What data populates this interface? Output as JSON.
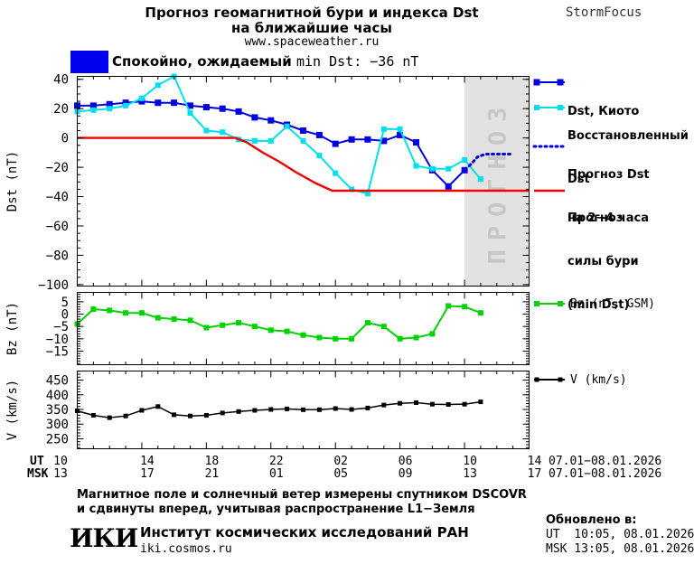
{
  "header": {
    "title_line1": "Прогноз геомагнитной бури и индекса Dst",
    "title_line2": "на ближайшие часы",
    "site": "www.spaceweather.ru",
    "brand": "StormFocus"
  },
  "status": {
    "level_label": "Спокойно, ожидаемый ",
    "value_label": "min Dst: −36 nT",
    "indicator_color": "#0000ee"
  },
  "legend_main": [
    {
      "lines": [
        "Dst, Киото"
      ]
    },
    {
      "lines": [
        "Восстановленный",
        "Dst"
      ]
    },
    {
      "lines": [
        "Прогноз Dst",
        "на 2−4 часа"
      ]
    },
    {
      "lines": [
        "Прогноз",
        "силы бури",
        "(min Dst)"
      ]
    }
  ],
  "legend_bz": "Bz (nT, GSM)",
  "legend_v": "V (km/s)",
  "axis": {
    "ut_label": "UT",
    "msk_label": "MSK",
    "ut_ticks": [
      "10",
      "14",
      "18",
      "22",
      "02",
      "06",
      "10",
      "14"
    ],
    "msk_ticks": [
      "13",
      "17",
      "21",
      "01",
      "05",
      "09",
      "13",
      "17"
    ],
    "ut_date": "07.01−08.01.2026",
    "msk_date": "07.01−08.01.2026"
  },
  "footer": {
    "note_line1": "Магнитное поле и солнечный ветер измерены спутником DSCOVR",
    "note_line2": "и сдвинуты вперед, учитывая распространение L1−Земля",
    "logo_text": "ИКИ",
    "institute": "Институт космических исследований РАН",
    "site": "iki.cosmos.ru",
    "updated_label": "Обновлено в:",
    "updated_ut": "UT  10:05, 08.01.2026",
    "updated_msk": "MSK 13:05, 08.01.2026"
  },
  "chart_data": [
    {
      "type": "line",
      "name": "dst-panel",
      "ylabel": "Dst (nT)",
      "ylim": [
        -101,
        42
      ],
      "yticks": [
        40,
        20,
        0,
        -20,
        -40,
        -60,
        -80,
        -100
      ],
      "yminor": 5,
      "x_hours": [
        0,
        28
      ],
      "xmajor_every": 4,
      "forecast_band": {
        "start_hour": 24,
        "end_hour": 28,
        "label": "ПРОГНОЗ",
        "fill": "#e2e2e2",
        "text_color": "#c7c7c7"
      },
      "series": [
        {
          "name": "Dst, Киото",
          "color": "#0000e0",
          "marker": true,
          "marker_size": 7,
          "width": 2,
          "x": [
            0,
            1,
            2,
            3,
            4,
            5,
            6,
            7,
            8,
            9,
            10,
            11,
            12,
            13,
            14,
            15,
            16,
            17,
            18,
            19,
            20,
            21,
            22,
            23,
            24
          ],
          "values": [
            22,
            22,
            23,
            24,
            25,
            24,
            24,
            22,
            21,
            20,
            18,
            14,
            12,
            9,
            5,
            2,
            -4,
            -1,
            -1,
            -2,
            2,
            -3,
            -22,
            -33,
            -22
          ]
        },
        {
          "name": "Восстановленный Dst",
          "color": "#00dfee",
          "marker": true,
          "marker_size": 6,
          "width": 2,
          "x": [
            0,
            1,
            2,
            3,
            4,
            5,
            6,
            7,
            8,
            9,
            10,
            11,
            12,
            13,
            14,
            15,
            16,
            17,
            18,
            19,
            20,
            21,
            22,
            23,
            24,
            25
          ],
          "values": [
            18,
            19,
            20,
            22,
            27,
            36,
            42,
            17,
            5,
            4,
            -1,
            -2,
            -2,
            8,
            -2,
            -12,
            -24,
            -35,
            -38,
            6,
            6,
            -19,
            -21,
            -21,
            -15,
            -28
          ]
        },
        {
          "name": "Прогноз Dst на 2−4 часа",
          "color": "#0000e0",
          "style": "dotted",
          "width": 3,
          "x": [
            24.3,
            24.8,
            25.3,
            27.0
          ],
          "values": [
            -19,
            -13,
            -11,
            -11
          ]
        },
        {
          "name": "Прогноз силы бури (min Dst)",
          "color": "#ee0000",
          "width": 2.4,
          "x": [
            0,
            9.8,
            10.5,
            11.5,
            12.5,
            13.5,
            14.8,
            15.8,
            28
          ],
          "values": [
            0,
            0,
            -3,
            -10,
            -16,
            -23,
            -31,
            -36,
            -36
          ]
        }
      ]
    },
    {
      "type": "line",
      "name": "bz-panel",
      "ylabel": "Bz (nT)",
      "ylim": [
        -20.5,
        8.8
      ],
      "yticks": [
        5,
        0,
        -5,
        -10,
        -15
      ],
      "yminor": 1,
      "x_hours": [
        0,
        28
      ],
      "xmajor_every": 4,
      "series": [
        {
          "name": "Bz (nT, GSM)",
          "color": "#00d300",
          "marker": true,
          "marker_size": 6,
          "width": 2,
          "x": [
            0,
            1,
            2,
            3,
            4,
            5,
            6,
            7,
            8,
            9,
            10,
            11,
            12,
            13,
            14,
            15,
            16,
            17,
            18,
            19,
            20,
            21,
            22,
            23,
            24,
            25
          ],
          "values": [
            -4,
            2,
            1.5,
            0.5,
            0.5,
            -1.5,
            -2,
            -2.5,
            -5.5,
            -4.5,
            -3.5,
            -5,
            -6.5,
            -7,
            -8.5,
            -9.5,
            -10,
            -10,
            -3.5,
            -5,
            -10,
            -9.5,
            -8,
            3.3,
            3,
            0.5
          ]
        }
      ]
    },
    {
      "type": "line",
      "name": "v-panel",
      "ylabel": "V (km/s)",
      "ylim": [
        216,
        481
      ],
      "yticks": [
        450,
        400,
        350,
        300,
        250
      ],
      "yminor": 10,
      "x_hours": [
        0,
        28
      ],
      "xmajor_every": 4,
      "series": [
        {
          "name": "V (km/s)",
          "color": "#000000",
          "marker": true,
          "marker_size": 5,
          "width": 1.5,
          "x": [
            0,
            1,
            2,
            3,
            4,
            5,
            6,
            7,
            8,
            9,
            10,
            11,
            12,
            13,
            14,
            15,
            16,
            17,
            18,
            19,
            20,
            21,
            22,
            23,
            24,
            25
          ],
          "values": [
            345,
            330,
            322,
            328,
            347,
            360,
            332,
            328,
            330,
            338,
            343,
            347,
            350,
            352,
            349,
            349,
            353,
            350,
            355,
            365,
            371,
            373,
            368,
            367,
            368,
            376
          ]
        }
      ]
    }
  ]
}
